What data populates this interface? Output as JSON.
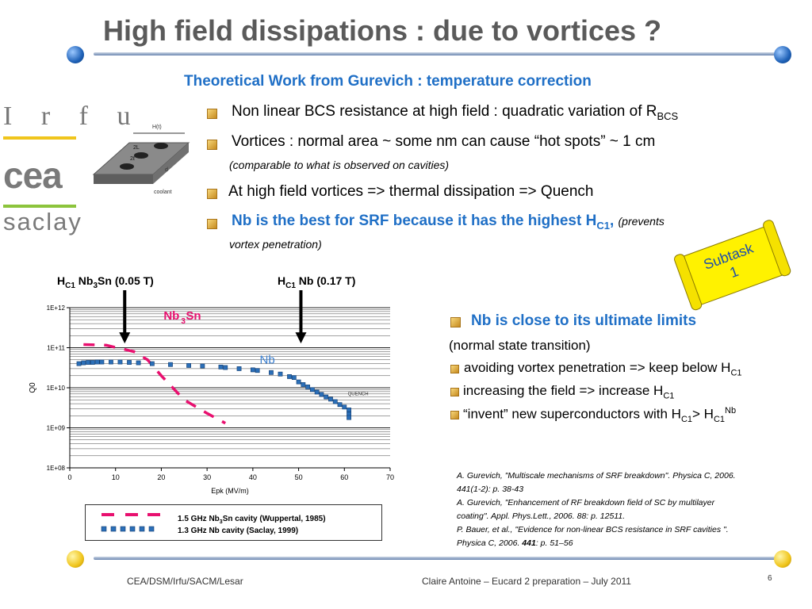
{
  "title": "High field dissipations : due to vortices ?",
  "subtitle": "Theoretical Work from Gurevich : temperature correction",
  "logos": {
    "irfu": "I r f u",
    "cea": "cea",
    "saclay": "saclay"
  },
  "bullets": {
    "b1": "Non linear BCS resistance at high field : quadratic variation of R",
    "b1_sub": "BCS",
    "b2": "Vortices : normal area ~ some nm can cause “hot spots” ~ 1 cm",
    "b2_note": "(comparable to what is observed on cavities)",
    "b3": "At high field vortices => thermal dissipation => Quench",
    "b4_main": "Nb is the best for SRF because it has the highest H",
    "b4_sub": "C1",
    "b4_comma": ",",
    "b4_note1": "(prevents",
    "b4_note2": "vortex penetration)"
  },
  "diagram": {
    "htlabel": "H(t)",
    "l2": "2L",
    "l3": "2ℓ",
    "d": "d",
    "coolant": "coolant"
  },
  "subtask": {
    "line1": "Subtask",
    "line2": "1"
  },
  "annotations": {
    "hc1_nb3sn_pre": "H",
    "hc1_nb3sn_sub": "C1",
    "hc1_nb3sn_mid": " Nb",
    "hc1_nb3sn_sub2": "3",
    "hc1_nb3sn_post": "Sn (0.05 T)",
    "hc1_nb_pre": "H",
    "hc1_nb_sub": "C1",
    "hc1_nb_post": " Nb (0.17 T)"
  },
  "chart_data": {
    "type": "scatter",
    "ylabel": "Q0",
    "xlabel": "Epk (MV/m)",
    "xlim": [
      0,
      70
    ],
    "x_ticks": [
      "0",
      "10",
      "20",
      "30",
      "40",
      "50",
      "60",
      "70"
    ],
    "y_log": true,
    "ylim": [
      100000000.0,
      1000000000000.0
    ],
    "y_ticks": [
      "1E+08",
      "1E+09",
      "1E+10",
      "1E+11",
      "1E+12"
    ],
    "grid": true,
    "labels": {
      "nb3sn": "Nb",
      "nb3sn_sub": "3",
      "nb3sn_post": "Sn",
      "nb": "Nb",
      "quench": "QUENCH"
    },
    "series": [
      {
        "name": "1.5 GHz Nb3Sn cavity (Wuppertal, 1985)",
        "color": "#e8106f",
        "style": "dashed",
        "points": [
          [
            3,
            120000000000.0
          ],
          [
            8,
            115000000000.0
          ],
          [
            14,
            80000000000.0
          ],
          [
            17,
            50000000000.0
          ],
          [
            20,
            20000000000.0
          ],
          [
            25,
            5000000000.0
          ],
          [
            30,
            2300000000.0
          ],
          [
            34,
            1300000000.0
          ]
        ]
      },
      {
        "name": "1.3 GHz Nb cavity (Saclay, 1999)",
        "color": "#2b6fb8",
        "style": "markers",
        "points": [
          [
            2,
            40000000000.0
          ],
          [
            3,
            42000000000.0
          ],
          [
            4,
            43000000000.0
          ],
          [
            5,
            43000000000.0
          ],
          [
            6,
            44000000000.0
          ],
          [
            7,
            44000000000.0
          ],
          [
            9,
            44000000000.0
          ],
          [
            11,
            44000000000.0
          ],
          [
            13,
            43000000000.0
          ],
          [
            15,
            42000000000.0
          ],
          [
            18,
            40000000000.0
          ],
          [
            22,
            38000000000.0
          ],
          [
            26,
            36000000000.0
          ],
          [
            29,
            35000000000.0
          ],
          [
            33,
            33000000000.0
          ],
          [
            34,
            32000000000.0
          ],
          [
            37,
            30000000000.0
          ],
          [
            40,
            28000000000.0
          ],
          [
            41,
            27000000000.0
          ],
          [
            44,
            24000000000.0
          ],
          [
            46,
            22000000000.0
          ],
          [
            48,
            19000000000.0
          ],
          [
            49,
            18000000000.0
          ],
          [
            50,
            14000000000.0
          ],
          [
            51,
            12000000000.0
          ],
          [
            52,
            10500000000.0
          ],
          [
            53,
            9000000000.0
          ],
          [
            54,
            7800000000.0
          ],
          [
            55,
            6800000000.0
          ],
          [
            56,
            5900000000.0
          ],
          [
            57,
            5200000000.0
          ],
          [
            58,
            4500000000.0
          ],
          [
            59,
            3800000000.0
          ],
          [
            60,
            3300000000.0
          ],
          [
            61,
            2800000000.0
          ],
          [
            61,
            2200000000.0
          ],
          [
            61,
            1800000000.0
          ]
        ]
      }
    ],
    "legend": {
      "nb3sn_pre": "1.5 GHz Nb",
      "nb3sn_sub": "3",
      "nb3sn_post": "Sn cavity (Wuppertal, 1985)",
      "nb": "1.3 GHz Nb cavity (Saclay, 1999)"
    }
  },
  "right": {
    "r1": "Nb is close to its ultimate limits",
    "r2": "(normal state transition)",
    "r3": "avoiding vortex penetration => keep below H",
    "r3_sub": "C1",
    "r4": "increasing the field => increase H",
    "r4_sub": "C1",
    "r5_pre": "“invent” new superconductors with H",
    "r5_sub": "C1",
    "r5_mid": "> H",
    "r5_sub2": "C1",
    "r5_sup": "Nb"
  },
  "references": {
    "ref1a": "A. Gurevich, \"Multiscale mechanisms of SRF breakdown\". Physica C, 2006.",
    "ref1b": "441(1-2): p. 38-43",
    "ref2a": "A. Gurevich, \"Enhancement of RF breakdown field of SC by multilayer",
    "ref2b": "coating\". Appl. Phys.Lett., 2006. 88: p. 12511.",
    "ref3a": "P. Bauer, et al., \"Evidence for non-linear BCS resistance in SRF cavities \".",
    "ref3b_pre": "Physica C, 2006. ",
    "ref3b_bold": "441",
    "ref3b_post": ": p. 51–56"
  },
  "footer": {
    "left": "CEA/DSM/Irfu/SACM/Lesar",
    "center": "Claire Antoine – Eucard 2 preparation – July 2011",
    "page": "6"
  }
}
